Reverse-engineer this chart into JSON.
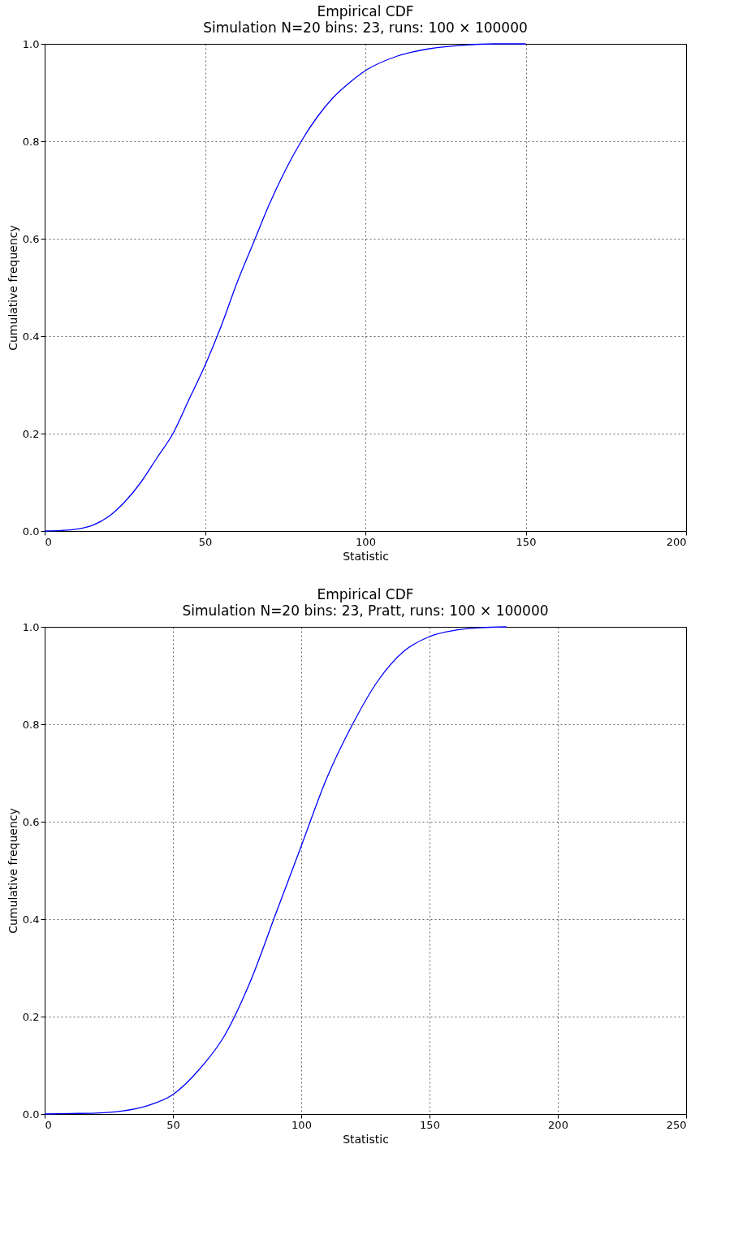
{
  "chart_data": [
    {
      "type": "line",
      "title": "Empirical CDF",
      "subtitle": "Simulation N=20 bins: 23, runs: 100 × 100000",
      "xlabel": "Statistic",
      "ylabel": "Cumulative frequency",
      "x": [
        0,
        5,
        10,
        15,
        20,
        25,
        30,
        35,
        40,
        45,
        50,
        55,
        60,
        65,
        70,
        75,
        80,
        85,
        90,
        95,
        100,
        110,
        120,
        130,
        140,
        150
      ],
      "series": [
        {
          "color": "#0000ff",
          "values": [
            0,
            0.001,
            0.004,
            0.012,
            0.03,
            0.06,
            0.1,
            0.15,
            0.2,
            0.27,
            0.34,
            0.42,
            0.51,
            0.59,
            0.67,
            0.74,
            0.8,
            0.85,
            0.89,
            0.92,
            0.945,
            0.975,
            0.99,
            0.997,
            1.0,
            1.0
          ]
        }
      ],
      "xlim": [
        0,
        200
      ],
      "ylim": [
        0,
        1
      ],
      "xticks": [
        0,
        50,
        100,
        150,
        200
      ],
      "yticks": [
        {
          "value": 0,
          "label": "0.0"
        },
        {
          "value": 0.2,
          "label": "0.2"
        },
        {
          "value": 0.4,
          "label": "0.4"
        },
        {
          "value": 0.6,
          "label": "0.6"
        },
        {
          "value": 0.8,
          "label": "0.8"
        },
        {
          "value": 1,
          "label": "1.0"
        }
      ],
      "grid": true
    },
    {
      "type": "line",
      "title": "Empirical CDF",
      "subtitle": "Simulation N=20 bins: 23, Pratt, runs: 100 × 100000",
      "xlabel": "Statistic",
      "ylabel": "Cumulative frequency",
      "x": [
        0,
        10,
        20,
        30,
        40,
        50,
        60,
        70,
        80,
        90,
        100,
        110,
        120,
        130,
        140,
        150,
        160,
        170,
        180
      ],
      "series": [
        {
          "color": "#0000ff",
          "values": [
            0,
            0.001,
            0.002,
            0.006,
            0.017,
            0.04,
            0.09,
            0.16,
            0.27,
            0.41,
            0.55,
            0.69,
            0.8,
            0.89,
            0.95,
            0.98,
            0.993,
            0.998,
            1.0
          ]
        }
      ],
      "xlim": [
        0,
        250
      ],
      "ylim": [
        0,
        1
      ],
      "xticks": [
        0,
        50,
        100,
        150,
        200,
        250
      ],
      "yticks": [
        {
          "value": 0,
          "label": "0.0"
        },
        {
          "value": 0.2,
          "label": "0.2"
        },
        {
          "value": 0.4,
          "label": "0.4"
        },
        {
          "value": 0.6,
          "label": "0.6"
        },
        {
          "value": 0.8,
          "label": "0.8"
        },
        {
          "value": 1,
          "label": "1.0"
        }
      ],
      "grid": true
    }
  ]
}
